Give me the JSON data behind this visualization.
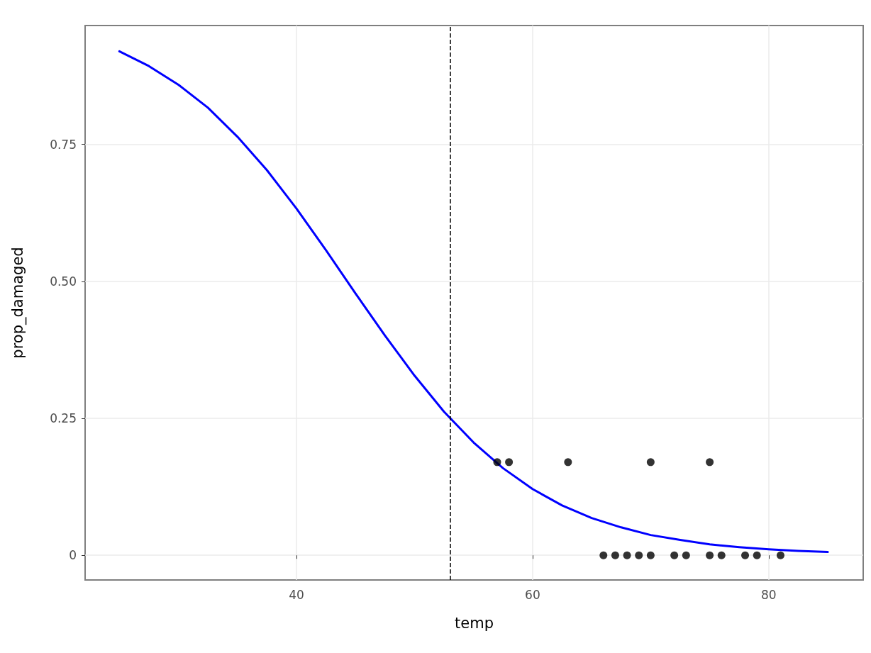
{
  "chart_data": {
    "type": "scatter",
    "xlabel": "temp",
    "ylabel": "prop_damaged",
    "xlim": [
      22.1,
      88
    ],
    "xticks": [
      40,
      60,
      80
    ],
    "ylim": [
      -0.045,
      0.967
    ],
    "yticks": [
      0,
      0.25,
      {
        "value": 0.5,
        "label": "0.50"
      },
      0.75
    ],
    "grid": true,
    "marker": "circle",
    "series": [
      {
        "color": "#000000",
        "x": [
          57,
          58,
          63,
          70,
          75,
          66,
          67,
          68,
          69,
          70,
          72,
          73,
          75,
          76,
          78,
          79,
          81
        ],
        "values": [
          0.17,
          0.17,
          0.17,
          0.17,
          0.17,
          0,
          0,
          0,
          0,
          0,
          0,
          0,
          0,
          0,
          0,
          0,
          0
        ]
      },
      {
        "type": "line",
        "color": "#0000ff",
        "line_style": "solid",
        "marker": "none",
        "x": [
          25,
          27.5,
          30,
          32.5,
          35,
          37.5,
          40,
          42.5,
          45,
          47.5,
          50,
          52.5,
          55,
          57.5,
          60,
          62.5,
          65,
          67.5,
          70,
          72.5,
          75,
          77.5,
          80,
          82.5,
          85
        ],
        "values": [
          0.92,
          0.893,
          0.859,
          0.817,
          0.764,
          0.703,
          0.633,
          0.557,
          0.478,
          0.401,
          0.328,
          0.262,
          0.206,
          0.159,
          0.121,
          0.091,
          0.068,
          0.051,
          0.037,
          0.028,
          0.02,
          0.015,
          0.011,
          0.008,
          0.006
        ]
      }
    ],
    "ref_lines": [
      {
        "axis": "x",
        "value": 53,
        "color": "#000000",
        "line_style": "dashed"
      }
    ]
  }
}
